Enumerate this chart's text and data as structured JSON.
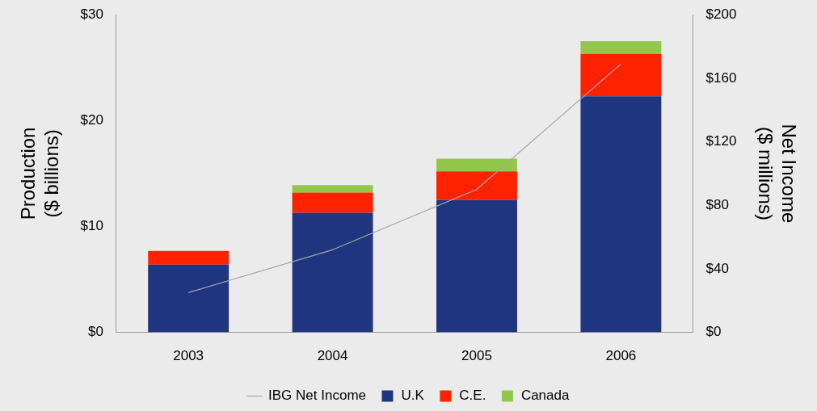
{
  "chart_data": {
    "type": "bar",
    "stacked": true,
    "categories": [
      "2003",
      "2004",
      "2005",
      "2006"
    ],
    "series": [
      {
        "name": "U.K",
        "color": "#1f3580",
        "values": [
          6.4,
          11.3,
          12.5,
          22.3
        ]
      },
      {
        "name": "C.E.",
        "color": "#ff2200",
        "values": [
          1.3,
          1.9,
          2.7,
          4.0
        ]
      },
      {
        "name": "Canada",
        "color": "#92c84a",
        "values": [
          null,
          0.7,
          1.2,
          1.2
        ]
      },
      {
        "name": "IBG Net Income",
        "type": "line",
        "axis": "y2",
        "color": "#a6a6a6",
        "values": [
          25,
          52,
          90,
          169
        ]
      }
    ],
    "ylabel": "Production\n($ billions)",
    "y2label": "Net Income\n($ millions)",
    "ylim": [
      0,
      30
    ],
    "yticks": [
      {
        "value": 0,
        "label": "$0"
      },
      {
        "value": 10,
        "label": "$10"
      },
      {
        "value": 20,
        "label": "$20"
      },
      {
        "value": 30,
        "label": "$30"
      }
    ],
    "y2lim": [
      0,
      200
    ],
    "y2ticks": [
      {
        "value": 0,
        "label": "$0"
      },
      {
        "value": 40,
        "label": "$40"
      },
      {
        "value": 80,
        "label": "$80"
      },
      {
        "value": 120,
        "label": "$120"
      },
      {
        "value": 160,
        "label": "$160"
      },
      {
        "value": 200,
        "label": "$200"
      }
    ],
    "grid": false,
    "legend": "bottom",
    "marker": "none"
  }
}
